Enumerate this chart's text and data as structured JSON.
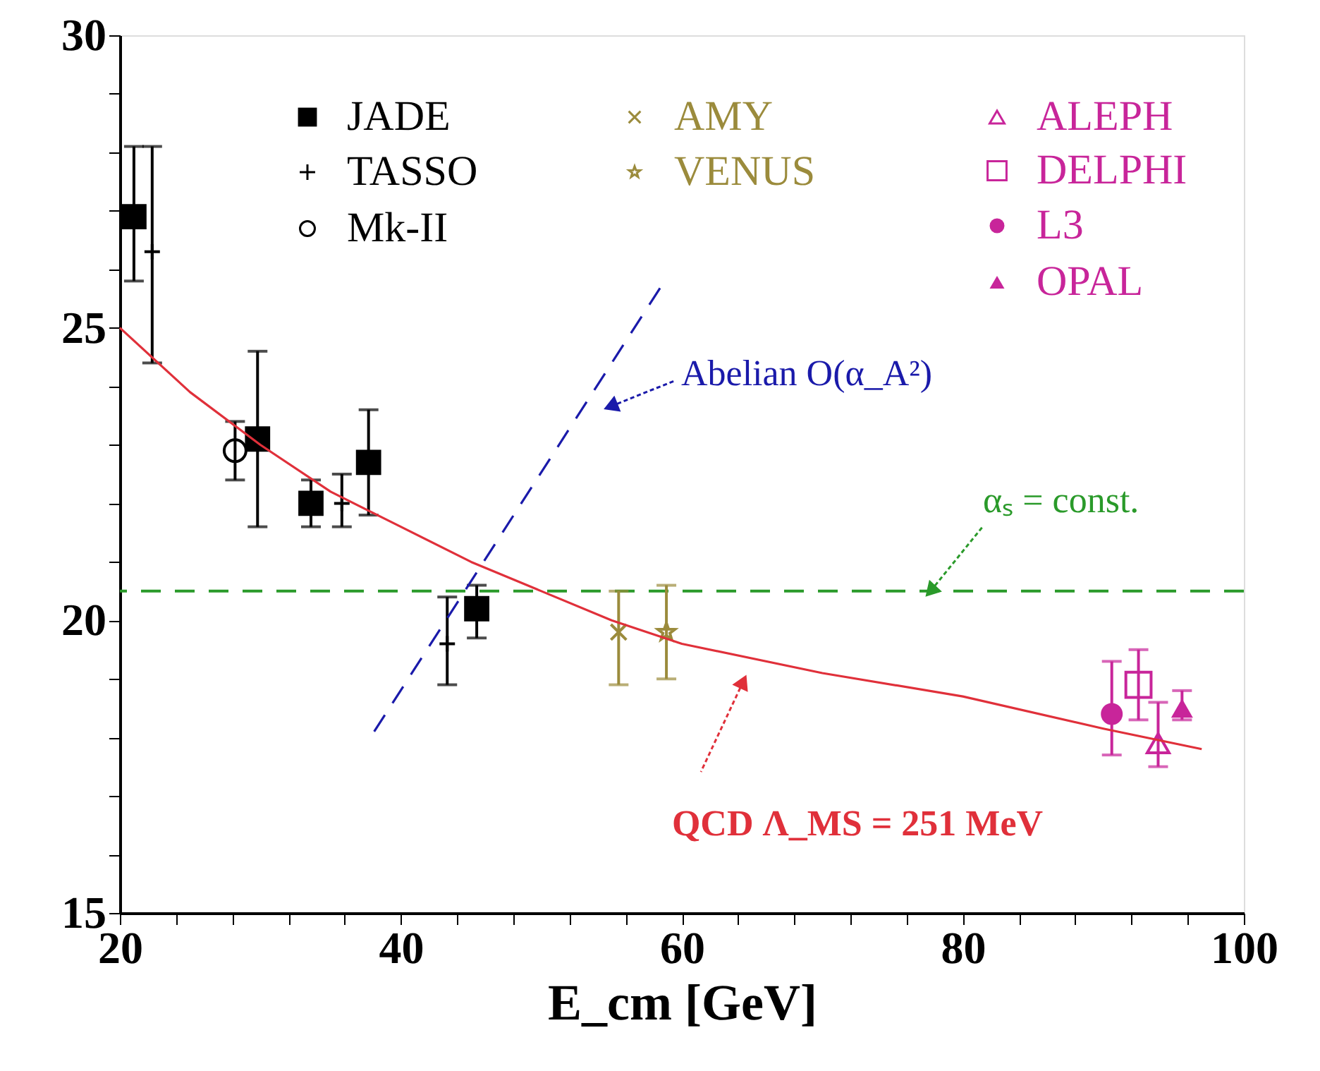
{
  "chart_data": {
    "type": "scatter",
    "xlabel": "E_cm [GeV]",
    "legend": "top",
    "xlim": [
      20,
      100
    ],
    "ylim": [
      15,
      30
    ],
    "xticks": [
      20,
      {
        "value": 24,
        "label": null
      },
      {
        "value": 28,
        "label": null
      },
      {
        "value": 32,
        "label": null
      },
      {
        "value": 36,
        "label": null
      },
      40,
      {
        "value": 44,
        "label": null
      },
      {
        "value": 48,
        "label": null
      },
      {
        "value": 52,
        "label": null
      },
      {
        "value": 56,
        "label": null
      },
      60,
      {
        "value": 64,
        "label": null
      },
      {
        "value": 68,
        "label": null
      },
      {
        "value": 72,
        "label": null
      },
      {
        "value": 76,
        "label": null
      },
      80,
      {
        "value": 84,
        "label": null
      },
      {
        "value": 88,
        "label": null
      },
      {
        "value": 92,
        "label": null
      },
      {
        "value": 96,
        "label": null
      },
      100
    ],
    "yticks": [
      15,
      {
        "value": 16,
        "label": null
      },
      {
        "value": 17,
        "label": null
      },
      {
        "value": 18,
        "label": null
      },
      {
        "value": 19,
        "label": null
      },
      20,
      {
        "value": 21,
        "label": null
      },
      {
        "value": 22,
        "label": null
      },
      {
        "value": 23,
        "label": null
      },
      {
        "value": 24,
        "label": null
      },
      25,
      {
        "value": 26,
        "label": null
      },
      {
        "value": 27,
        "label": null
      },
      {
        "value": 28,
        "label": null
      },
      {
        "value": 29,
        "label": null
      },
      30
    ],
    "grid": false,
    "series": [
      {
        "name": "JADE",
        "color": "#000000",
        "marker": "square",
        "x": [
          21.0,
          29.8,
          33.6,
          37.7,
          45.4
        ],
        "values": [
          26.9,
          23.1,
          22.0,
          22.7,
          20.2
        ],
        "errors": [
          [
            25.8,
            28.1
          ],
          [
            21.6,
            24.6
          ],
          [
            21.6,
            22.4
          ],
          [
            21.8,
            23.6
          ],
          [
            19.7,
            20.6
          ]
        ]
      },
      {
        "name": "TASSO",
        "color": "#000000",
        "marker": "cross",
        "x": [
          22.3,
          35.8,
          43.3
        ],
        "values": [
          26.3,
          22.0,
          19.6
        ],
        "errors": [
          [
            24.4,
            28.1
          ],
          [
            21.6,
            22.5
          ],
          [
            18.9,
            20.4
          ]
        ]
      },
      {
        "name": "Mk-II",
        "color": "#000000",
        "marker": "circle",
        "x": [
          28.2
        ],
        "values": [
          22.9
        ],
        "errors": [
          [
            22.4,
            23.4
          ]
        ]
      },
      {
        "name": "AMY",
        "color": "#9b8b3c",
        "marker": "cross",
        "x": [
          55.5
        ],
        "values": [
          19.8
        ],
        "errors": [
          [
            18.9,
            20.5
          ]
        ]
      },
      {
        "name": "VENUS",
        "color": "#9b8b3c",
        "marker": "star",
        "x": [
          58.9
        ],
        "values": [
          19.8
        ],
        "errors": [
          [
            19.0,
            20.6
          ]
        ]
      },
      {
        "name": "ALEPH",
        "color": "#c8259a",
        "marker": "triangle",
        "x": [
          93.9
        ],
        "values": [
          17.9
        ],
        "errors": [
          [
            17.5,
            18.6
          ]
        ]
      },
      {
        "name": "DELPHI",
        "color": "#c8259a",
        "marker": "square",
        "x": [
          92.5
        ],
        "values": [
          18.9
        ],
        "errors": [
          [
            18.3,
            19.5
          ]
        ]
      },
      {
        "name": "L3",
        "color": "#c8259a",
        "marker": "circle",
        "x": [
          90.6
        ],
        "values": [
          18.4
        ],
        "errors": [
          [
            17.7,
            19.3
          ]
        ]
      },
      {
        "name": "OPAL",
        "color": "#c8259a",
        "marker": "triangle",
        "x": [
          95.6
        ],
        "values": [
          18.5
        ],
        "errors": [
          [
            18.3,
            18.8
          ]
        ]
      },
      {
        "type": "line",
        "color": "#e0303a",
        "line_style": "solid",
        "x": [
          20,
          25,
          30,
          35,
          40,
          45,
          50,
          55,
          60,
          70,
          80,
          90,
          97
        ],
        "values": [
          25.0,
          23.9,
          23.0,
          22.2,
          21.6,
          21.0,
          20.5,
          20.0,
          19.6,
          19.1,
          18.7,
          18.15,
          17.8
        ]
      },
      {
        "type": "line",
        "color": "#1a1aaa",
        "line_style": "dashed",
        "x": [
          38.1,
          58.5
        ],
        "values": [
          18.1,
          25.7
        ]
      }
    ],
    "ref_lines": [
      {
        "axis": "y",
        "value": 20.5,
        "color": "#2a9a2a",
        "line_style": "dashed"
      }
    ],
    "annotations": [
      "Abelian O(α_A²)",
      {
        "text": "αₛ = const.",
        "x": 77.7,
        "y": 20.5
      },
      "QCD Λ_MS = 251 MeV"
    ]
  }
}
